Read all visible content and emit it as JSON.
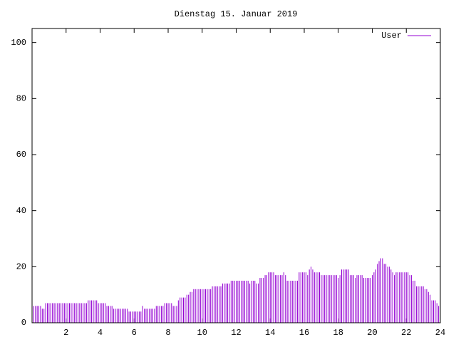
{
  "chart_data": {
    "type": "impulse",
    "title": "Dienstag 15. Januar 2019",
    "x": [
      0,
      0.1,
      0.2,
      0.3,
      0.4,
      0.5,
      0.6,
      0.7,
      0.8,
      0.9,
      1,
      1.1,
      1.2,
      1.3,
      1.4,
      1.5,
      1.6,
      1.7,
      1.8,
      1.9,
      2,
      2.1,
      2.2,
      2.3,
      2.4,
      2.5,
      2.6,
      2.7,
      2.8,
      2.9,
      3,
      3.1,
      3.2,
      3.3,
      3.4,
      3.5,
      3.6,
      3.7,
      3.8,
      3.9,
      4,
      4.1,
      4.2,
      4.3,
      4.4,
      4.5,
      4.6,
      4.7,
      4.8,
      4.9,
      5,
      5.1,
      5.2,
      5.3,
      5.4,
      5.5,
      5.6,
      5.7,
      5.8,
      5.9,
      6,
      6.1,
      6.2,
      6.3,
      6.4,
      6.5,
      6.6,
      6.7,
      6.8,
      6.9,
      7,
      7.1,
      7.2,
      7.3,
      7.4,
      7.5,
      7.6,
      7.7,
      7.8,
      7.9,
      8,
      8.1,
      8.2,
      8.3,
      8.4,
      8.5,
      8.6,
      8.7,
      8.8,
      8.9,
      9,
      9.1,
      9.2,
      9.3,
      9.4,
      9.5,
      9.6,
      9.7,
      9.8,
      9.9,
      10,
      10.1,
      10.2,
      10.3,
      10.4,
      10.5,
      10.6,
      10.7,
      10.8,
      10.9,
      11,
      11.1,
      11.2,
      11.3,
      11.4,
      11.5,
      11.6,
      11.7,
      11.8,
      11.9,
      12,
      12.1,
      12.2,
      12.3,
      12.4,
      12.5,
      12.6,
      12.7,
      12.8,
      12.9,
      13,
      13.1,
      13.2,
      13.3,
      13.4,
      13.5,
      13.6,
      13.7,
      13.8,
      13.9,
      14,
      14.1,
      14.2,
      14.3,
      14.4,
      14.5,
      14.6,
      14.7,
      14.8,
      14.9,
      15,
      15.1,
      15.2,
      15.3,
      15.4,
      15.5,
      15.6,
      15.7,
      15.8,
      15.9,
      16,
      16.1,
      16.2,
      16.3,
      16.4,
      16.5,
      16.6,
      16.7,
      16.8,
      16.9,
      17,
      17.1,
      17.2,
      17.3,
      17.4,
      17.5,
      17.6,
      17.7,
      17.8,
      17.9,
      18,
      18.1,
      18.2,
      18.3,
      18.4,
      18.5,
      18.6,
      18.7,
      18.8,
      18.9,
      19,
      19.1,
      19.2,
      19.3,
      19.4,
      19.5,
      19.6,
      19.7,
      19.8,
      19.9,
      20,
      20.1,
      20.2,
      20.3,
      20.4,
      20.5,
      20.6,
      20.7,
      20.8,
      20.9,
      21,
      21.1,
      21.2,
      21.3,
      21.4,
      21.5,
      21.6,
      21.7,
      21.8,
      21.9,
      22,
      22.1,
      22.2,
      22.3,
      22.4,
      22.5,
      22.6,
      22.7,
      22.8,
      22.9,
      23,
      23.1,
      23.2,
      23.3,
      23.4,
      23.5,
      23.6,
      23.7,
      23.8,
      23.9
    ],
    "series": [
      {
        "name": "User",
        "color": "#9400d3",
        "values": [
          6,
          6,
          6,
          6,
          6,
          6,
          5,
          5,
          7,
          7,
          7,
          7,
          7,
          7,
          7,
          7,
          7,
          7,
          7,
          7,
          7,
          7,
          7,
          7,
          7,
          7,
          7,
          7,
          7,
          7,
          7,
          7,
          7,
          8,
          8,
          8,
          8,
          8,
          8,
          7,
          7,
          7,
          7,
          7,
          6,
          6,
          6,
          6,
          5,
          5,
          5,
          5,
          5,
          5,
          5,
          5,
          5,
          4,
          4,
          4,
          4,
          4,
          4,
          4,
          4,
          6,
          5,
          5,
          5,
          5,
          5,
          5,
          5,
          6,
          6,
          6,
          6,
          6,
          7,
          7,
          7,
          7,
          7,
          6,
          6,
          6,
          8,
          9,
          9,
          9,
          9,
          10,
          10,
          11,
          11,
          12,
          12,
          12,
          12,
          12,
          12,
          12,
          12,
          12,
          12,
          12,
          13,
          13,
          13,
          13,
          13,
          13,
          14,
          14,
          14,
          14,
          14,
          15,
          15,
          15,
          15,
          15,
          15,
          15,
          15,
          15,
          15,
          15,
          14,
          15,
          15,
          15,
          14,
          14,
          16,
          16,
          16,
          17,
          17,
          18,
          18,
          18,
          18,
          17,
          17,
          17,
          17,
          17,
          18,
          17,
          15,
          15,
          15,
          15,
          15,
          15,
          15,
          18,
          18,
          18,
          18,
          18,
          17,
          19,
          20,
          19,
          18,
          18,
          18,
          18,
          17,
          17,
          17,
          17,
          17,
          17,
          17,
          17,
          17,
          17,
          16,
          17,
          19,
          19,
          19,
          19,
          19,
          17,
          17,
          17,
          16,
          17,
          17,
          17,
          17,
          16,
          16,
          16,
          16,
          16,
          17,
          18,
          19,
          21,
          22,
          23,
          23,
          21,
          21,
          20,
          20,
          19,
          18,
          17,
          18,
          18,
          18,
          18,
          18,
          18,
          18,
          18,
          17,
          17,
          15,
          15,
          13,
          13,
          13,
          13,
          13,
          12,
          12,
          11,
          10,
          8,
          8,
          8,
          7,
          6
        ]
      }
    ],
    "xlim": [
      0,
      24
    ],
    "xticks": [
      2,
      4,
      6,
      8,
      10,
      12,
      14,
      16,
      18,
      20,
      22,
      24
    ],
    "ylim": [
      0,
      105
    ],
    "yticks": [
      0,
      20,
      40,
      60,
      80,
      100
    ],
    "legend": "top-right"
  }
}
